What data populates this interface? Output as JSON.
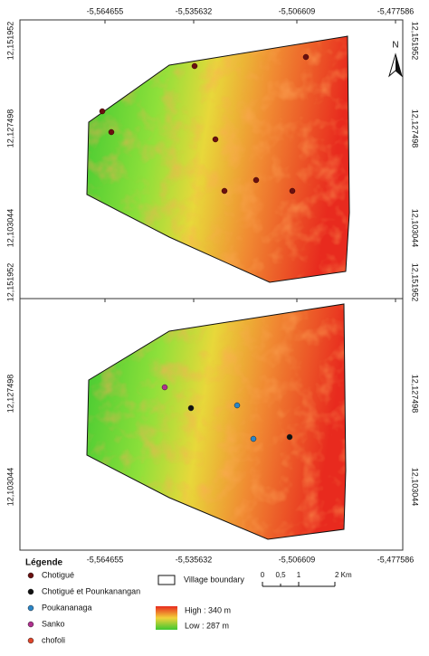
{
  "panels": [
    {
      "x_labels": [
        "-5,564655",
        "-5,535632",
        "-5,506609",
        "-5,477586"
      ],
      "y_labels_left": [
        "12,151952",
        "12,127498",
        "12,103044"
      ],
      "y_labels_right": [
        "12,151952",
        "12,127498",
        "12,103044"
      ],
      "north": "N"
    },
    {
      "x_labels": [
        "-5,564655",
        "-5,535632",
        "-5,506609",
        "-5,477586"
      ],
      "y_labels_left": [
        "12,151952",
        "12,127498",
        "12,103044"
      ],
      "y_labels_right": [
        "12,151952",
        "12,127498",
        "12,103044"
      ]
    }
  ],
  "legend": {
    "title": "Légende",
    "items": [
      "Chotigué",
      "Chotigué et Pounkanangan",
      "Poukananaga",
      "Sanko",
      "chofoli"
    ],
    "boundary": "Village boundary",
    "scale": [
      "0",
      "0,5",
      "1",
      "2 Km"
    ],
    "high": "High : 340 m",
    "low": "Low : 287 m"
  }
}
